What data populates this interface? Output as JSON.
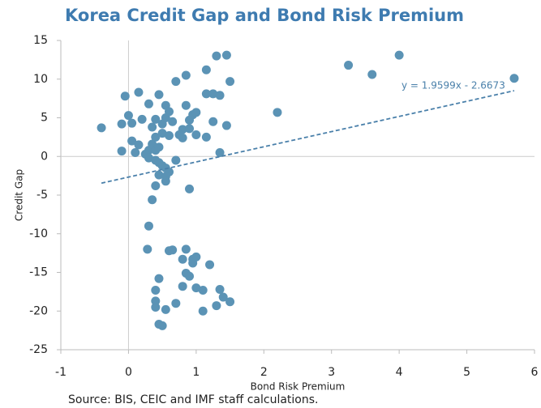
{
  "chart_data": {
    "type": "scatter",
    "title": "Korea Credit Gap and Bond Risk Premium",
    "x_label": "Bond Risk Premium",
    "y_label": "Credit Gap",
    "source": "Source: BIS, CEIC and IMF staff calculations.",
    "color": "#5b93b5",
    "xlim": [
      -1,
      6
    ],
    "xticks": [
      -1,
      0,
      1,
      2,
      3,
      4,
      5,
      6
    ],
    "ylim": [
      -25,
      15
    ],
    "yticks": [
      -25,
      -20,
      -15,
      -10,
      -5,
      0,
      5,
      10,
      15
    ],
    "trendline": {
      "label": "y = 1.9599x - 2.6673",
      "slope": 1.9599,
      "intercept": -2.6673,
      "xrange": [
        -0.4,
        5.7
      ],
      "color": "#4a80aa"
    },
    "x": [
      -0.4,
      -0.05,
      -0.1,
      0.15,
      0.0,
      0.05,
      0.2,
      0.3,
      0.45,
      0.55,
      0.7,
      0.85,
      1.15,
      1.3,
      1.45,
      1.5,
      1.15,
      1.25,
      1.35,
      0.95,
      1.0,
      0.9,
      0.8,
      0.75,
      1.0,
      1.15,
      1.25,
      1.45,
      1.35,
      2.2,
      3.25,
      3.6,
      4.0,
      5.7,
      -0.1,
      0.05,
      0.1,
      0.15,
      0.3,
      0.25,
      0.35,
      0.4,
      0.45,
      0.4,
      0.5,
      0.6,
      0.65,
      0.55,
      0.5,
      0.35,
      0.4,
      0.6,
      0.85,
      0.9,
      0.8,
      0.3,
      0.4,
      0.45,
      0.5,
      0.55,
      0.6,
      0.7,
      0.45,
      0.55,
      0.55,
      0.4,
      0.35,
      0.9,
      0.3,
      0.28,
      0.6,
      0.65,
      0.85,
      0.8,
      0.95,
      1.0,
      0.95,
      1.2,
      0.85,
      0.9,
      0.45,
      0.8,
      1.0,
      1.1,
      1.35,
      0.4,
      1.4,
      1.5,
      1.3,
      0.7,
      0.55,
      0.4,
      0.4,
      1.1,
      0.45,
      0.5
    ],
    "values": [
      3.7,
      7.8,
      4.2,
      8.3,
      5.3,
      4.3,
      4.8,
      6.8,
      8.0,
      6.6,
      9.7,
      10.5,
      11.2,
      13,
      13.1,
      9.7,
      8.1,
      8.1,
      7.9,
      5.4,
      5.7,
      4.7,
      3.5,
      2.8,
      2.8,
      2.5,
      4.5,
      4.0,
      0.5,
      5.7,
      11.8,
      10.6,
      13.1,
      10.1,
      0.7,
      2.0,
      0.5,
      1.5,
      0.8,
      0.3,
      1.6,
      0.8,
      1.2,
      2.5,
      3.0,
      2.7,
      4.5,
      5.0,
      4.2,
      3.8,
      4.8,
      5.8,
      6.6,
      3.6,
      2.4,
      -0.2,
      -0.5,
      -0.8,
      -1.2,
      -1.5,
      -2.0,
      -0.5,
      -2.4,
      -2.6,
      -3.2,
      -3.8,
      -5.6,
      -4.2,
      -9.0,
      -12.0,
      -12.2,
      -12.1,
      -12.0,
      -13.3,
      -13.3,
      -13.0,
      -13.8,
      -14.0,
      -15.1,
      -15.5,
      -15.8,
      -16.8,
      -17.0,
      -17.3,
      -17.2,
      -17.3,
      -18.2,
      -18.8,
      -19.3,
      -19.0,
      -19.8,
      -18.7,
      -19.5,
      -20.0,
      -21.7,
      -21.9
    ]
  }
}
